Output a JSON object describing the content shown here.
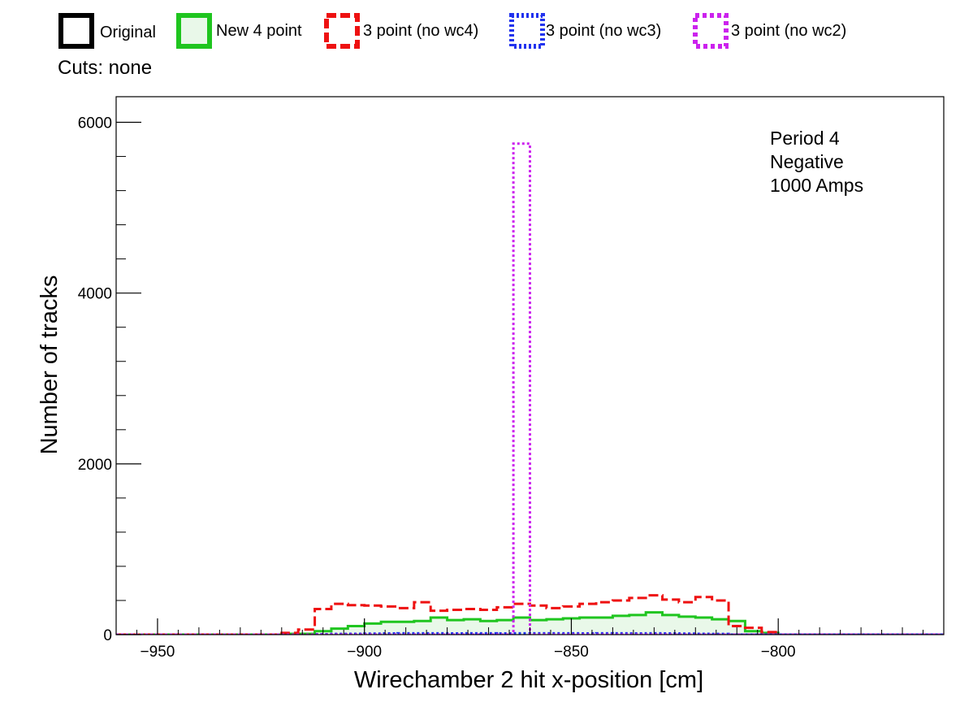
{
  "chart_data": {
    "type": "line",
    "xlabel": "Wirechamber 2 hit x-position [cm]",
    "ylabel": "Number of tracks",
    "xlim": [
      -960,
      -760
    ],
    "ylim": [
      0,
      6300
    ],
    "x_ticks": [
      -950,
      -900,
      -850,
      -800
    ],
    "y_ticks": [
      0,
      2000,
      4000,
      6000
    ],
    "x_tick_labels": [
      "−950",
      "−900",
      "−850",
      "−800"
    ],
    "y_tick_labels": [
      "0",
      "2000",
      "4000",
      "6000"
    ],
    "cuts_text": "Cuts: none",
    "annotation": [
      "Period 4",
      "Negative",
      "1000 Amps"
    ],
    "legend_placement": "top",
    "series": [
      {
        "name": "Original",
        "color": "#000000",
        "style": "solid",
        "fill": false,
        "edges": [
          -960,
          -760
        ],
        "values": [
          0
        ]
      },
      {
        "name": "New 4 point",
        "color": "#1fc51f",
        "style": "solid",
        "fill": true,
        "fill_color": "#e9f8e9",
        "edges": [
          -960,
          -920,
          -912,
          -908,
          -904,
          -900,
          -896,
          -892,
          -888,
          -884,
          -880,
          -876,
          -872,
          -868,
          -864,
          -860,
          -856,
          -852,
          -848,
          -844,
          -840,
          -836,
          -832,
          -828,
          -824,
          -820,
          -816,
          -812,
          -808,
          -804,
          -800,
          -760
        ],
        "values": [
          0,
          10,
          40,
          70,
          100,
          130,
          150,
          150,
          160,
          200,
          170,
          180,
          160,
          170,
          200,
          170,
          180,
          190,
          200,
          200,
          220,
          230,
          260,
          230,
          210,
          200,
          180,
          160,
          40,
          20,
          0
        ]
      },
      {
        "name": "3 point (no wc4)",
        "color": "#ee1111",
        "style": "dashed",
        "fill": false,
        "edges": [
          -960,
          -920,
          -916,
          -912,
          -908,
          -904,
          -900,
          -896,
          -892,
          -888,
          -884,
          -880,
          -876,
          -872,
          -868,
          -864,
          -860,
          -856,
          -852,
          -848,
          -844,
          -840,
          -836,
          -832,
          -828,
          -824,
          -820,
          -816,
          -812,
          -808,
          -804,
          -800,
          -760
        ],
        "values": [
          0,
          20,
          60,
          300,
          360,
          345,
          340,
          330,
          310,
          380,
          280,
          290,
          300,
          290,
          320,
          360,
          340,
          310,
          330,
          360,
          380,
          400,
          430,
          460,
          410,
          380,
          440,
          400,
          100,
          80,
          30,
          0
        ]
      },
      {
        "name": "3 point (no wc3)",
        "color": "#2233ee",
        "style": "dotted",
        "fill": false,
        "edges": [
          -960,
          -912,
          -908,
          -904,
          -900,
          -896,
          -892,
          -888,
          -884,
          -880,
          -876,
          -872,
          -868,
          -864,
          -860,
          -856,
          -852,
          -848,
          -844,
          -840,
          -836,
          -832,
          -828,
          -824,
          -820,
          -816,
          -812,
          -760
        ],
        "values": [
          0,
          5,
          8,
          10,
          12,
          14,
          15,
          16,
          15,
          14,
          16,
          15,
          14,
          16,
          15,
          16,
          15,
          14,
          16,
          15,
          14,
          16,
          14,
          12,
          10,
          8,
          0
        ]
      },
      {
        "name": "3 point (no wc2)",
        "color": "#cc22ee",
        "style": "dotted",
        "fill": false,
        "edges": [
          -960,
          -864,
          -860,
          -760
        ],
        "values": [
          0,
          5750,
          0
        ]
      }
    ]
  }
}
